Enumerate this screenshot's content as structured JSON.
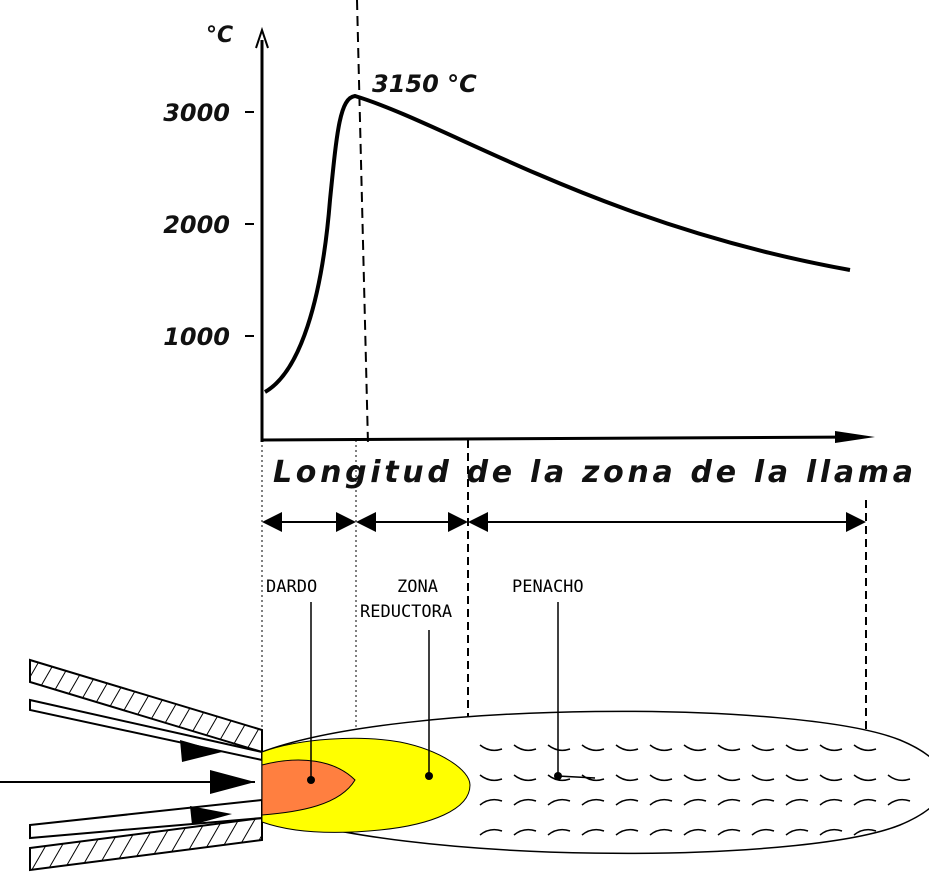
{
  "axis": {
    "unit": "°C",
    "ticks": [
      3000,
      2000,
      1000
    ],
    "xlabel": "Longitud de la zona de la llama"
  },
  "peak_label": "3150 °C",
  "zones": {
    "dardo": "DARDO",
    "reductora": [
      "ZONA",
      "REDUCTORA"
    ],
    "penacho": "PENACHO"
  }
}
